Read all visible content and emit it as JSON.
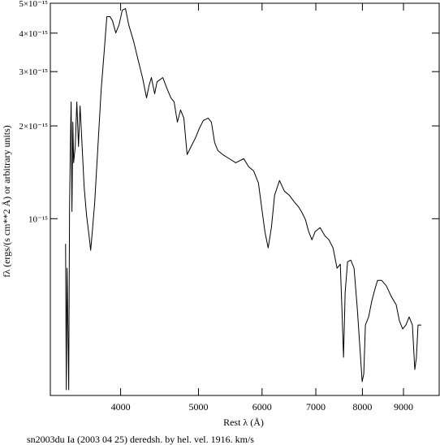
{
  "chart_data": {
    "type": "line",
    "title": "sn2003du Ia (2003 04 25) deredsh. by hel. vel.  1916. km/s",
    "xlabel": "Rest λ (Å)",
    "ylabel": "fλ (ergs/(s cm**2 Å) or arbitrary units)",
    "xscale": "log",
    "yscale": "log",
    "color": "#000000",
    "xlim": [
      3270,
      9970
    ],
    "ylim": [
      2.67e-16,
      5e-15
    ],
    "xticks": [
      4000,
      5000,
      6000,
      7000,
      8000,
      9000
    ],
    "yticks": [
      {
        "value": 1e-15,
        "label": "10⁻¹⁵"
      },
      {
        "value": 2e-15,
        "label": "2×10⁻¹⁵"
      },
      {
        "value": 3e-15,
        "label": "3×10⁻¹⁵"
      },
      {
        "value": 4e-15,
        "label": "4×10⁻¹⁵"
      },
      {
        "value": 5e-15,
        "label": "5×10⁻¹⁵"
      }
    ],
    "x": [
      3416,
      3423,
      3431,
      3447,
      3455,
      3463,
      3471,
      3479,
      3488,
      3496,
      3512,
      3528,
      3545,
      3561,
      3578,
      3603,
      3628,
      3654,
      3671,
      3688,
      3713,
      3748,
      3783,
      3818,
      3845,
      3881,
      3908,
      3945,
      3982,
      4019,
      4056,
      4094,
      4151,
      4210,
      4259,
      4309,
      4339,
      4369,
      4410,
      4441,
      4472,
      4514,
      4566,
      4620,
      4663,
      4707,
      4750,
      4795,
      4840,
      4896,
      4954,
      5011,
      5070,
      5141,
      5189,
      5237,
      5286,
      5361,
      5461,
      5564,
      5694,
      5774,
      5856,
      5938,
      5993,
      6049,
      6106,
      6163,
      6220,
      6308,
      6396,
      6486,
      6577,
      6669,
      6732,
      6794,
      6858,
      6922,
      6987,
      7085,
      7184,
      7268,
      7354,
      7439,
      7509,
      7544,
      7579,
      7614,
      7667,
      7739,
      7811,
      7884,
      7958,
      7994,
      8032,
      8069,
      8144,
      8220,
      8297,
      8355,
      8453,
      8571,
      8691,
      8813,
      8896,
      8979,
      9063,
      9147,
      9233,
      9297,
      9340,
      9384,
      9472
    ],
    "values": [
      8.29e-16,
      2.785e-16,
      6.91e-16,
      2.785e-16,
      1.056e-15,
      1.715e-15,
      2.393e-15,
      1.056e-15,
      2.057e-15,
      1.519e-15,
      1.715e-15,
      2.393e-15,
      1.715e-15,
      2.322e-15,
      1.822e-15,
      1.266e-15,
      1.024e-15,
      8.8e-16,
      7.9e-16,
      9.08e-16,
      1.122e-15,
      1.715e-15,
      2.62e-15,
      3.548e-15,
      4.522e-15,
      4.522e-15,
      4.387e-15,
      4.005e-15,
      4.256e-15,
      4.747e-15,
      4.805e-15,
      4.256e-15,
      3.77e-15,
      3.239e-15,
      2.87e-15,
      2.466e-15,
      2.702e-15,
      2.87e-15,
      2.543e-15,
      2.784e-15,
      2.818e-15,
      2.87e-15,
      2.653e-15,
      2.466e-15,
      2.393e-15,
      2.057e-15,
      2.253e-15,
      2.12e-15,
      1.614e-15,
      1.715e-15,
      1.822e-15,
      1.96e-15,
      2.082e-15,
      2.12e-15,
      2.057e-15,
      1.768e-15,
      1.664e-15,
      1.614e-15,
      1.566e-15,
      1.519e-15,
      1.566e-15,
      1.474e-15,
      1.43e-15,
      1.306e-15,
      1.088e-15,
      9.08e-16,
      8.04e-16,
      9.36e-16,
      1.192e-15,
      1.33e-15,
      1.229e-15,
      1.192e-15,
      1.136e-15,
      1.088e-15,
      1.043e-15,
      9.94e-16,
      9.08e-16,
      8.54e-16,
      9.08e-16,
      9.36e-16,
      8.8e-16,
      8.54e-16,
      8.04e-16,
      6.91e-16,
      7.12e-16,
      5.1e-16,
      3.55e-16,
      5.76e-16,
      7.25e-16,
      7.34e-16,
      6.91e-16,
      5.1e-16,
      3.55e-16,
      2.96e-16,
      3.14e-16,
      4.52e-16,
      4.8e-16,
      5.42e-16,
      5.94e-16,
      6.31e-16,
      6.31e-16,
      6.05e-16,
      5.59e-16,
      5.26e-16,
      4.66e-16,
      4.39e-16,
      4.52e-16,
      4.8e-16,
      4.52e-16,
      3.24e-16,
      3.55e-16,
      4.52e-16,
      4.52e-16
    ]
  }
}
